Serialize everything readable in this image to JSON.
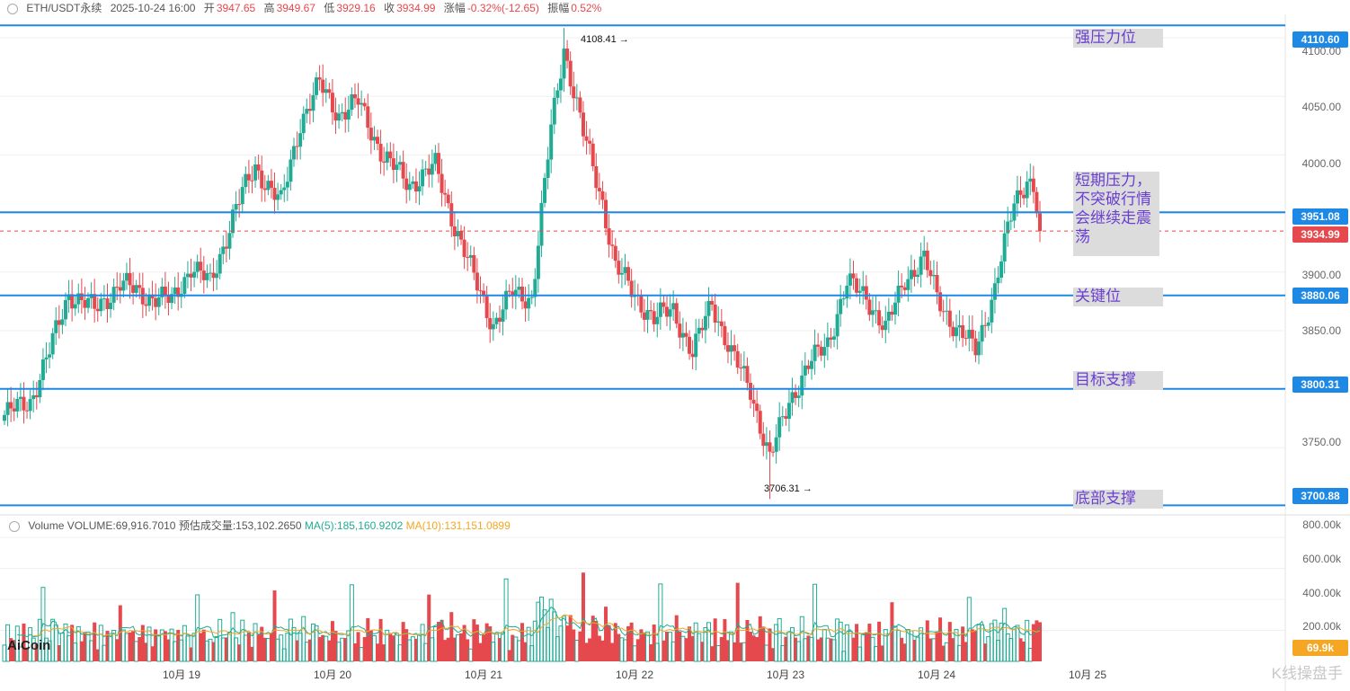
{
  "header": {
    "symbol": "ETH/USDT永续",
    "datetime": "2025-10-24 16:00",
    "open_label": "开",
    "open": "3947.65",
    "high_label": "高",
    "high": "3949.67",
    "low_label": "低",
    "low": "3929.16",
    "close_label": "收",
    "close": "3934.99",
    "change_label": "涨幅",
    "change": "-0.32%(-12.65)",
    "amp_label": "振幅",
    "amp": "0.52%"
  },
  "volume_header": {
    "title": "Volume",
    "volume": "VOLUME:69,916.7010",
    "est": "预估成交量:153,102.2650",
    "ma5": "MA(5):185,160.9202",
    "ma10": "MA(10):131,151.0899"
  },
  "annotations": {
    "strong_resistance": "强压力位",
    "short_resistance": "短期压力，不突破行情会继续走震荡",
    "key_level": "关键位",
    "target_support": "目标支撑",
    "bottom_support": "底部支撑"
  },
  "price_tags": {
    "t4110": "4110.60",
    "t3951": "3951.08",
    "t3934": "3934.99",
    "t3880": "3880.06",
    "t3800": "3800.31",
    "t3700": "3700.88"
  },
  "y_axis": [
    "4100.00",
    "4050.00",
    "4000.00",
    "3900.00",
    "3850.00",
    "3750.00"
  ],
  "vol_axis": [
    "800.00k",
    "600.00k",
    "400.00k",
    "200.00k"
  ],
  "vol_tag": "69.9k",
  "x_axis": [
    "10月 19",
    "10月 20",
    "10月 21",
    "10月 22",
    "10月 23",
    "10月 24",
    "10月 25"
  ],
  "extremes": {
    "high": "4108.41",
    "low": "3706.31"
  },
  "branding": {
    "logo": "AiCoin",
    "watermark": "K线操盘手"
  },
  "colors": {
    "up": "#22ab94",
    "down": "#e5484d",
    "level": "#1e88e5",
    "ma5": "#22ab94",
    "ma10": "#f5a623"
  },
  "chart_data": {
    "type": "candlestick",
    "interval": "1h",
    "y_range": [
      3695,
      4120
    ],
    "levels": [
      4110.6,
      3951.08,
      3880.06,
      3800.31,
      3700.88
    ],
    "last_price": 3934.99,
    "high": 4108.41,
    "low": 3706.31,
    "anchors": [
      [
        0,
        3778
      ],
      [
        8,
        3790
      ],
      [
        14,
        3832
      ],
      [
        20,
        3882
      ],
      [
        28,
        3868
      ],
      [
        36,
        3890
      ],
      [
        44,
        3880
      ],
      [
        52,
        3875
      ],
      [
        58,
        3905
      ],
      [
        64,
        3890
      ],
      [
        72,
        3955
      ],
      [
        78,
        3990
      ],
      [
        86,
        3958
      ],
      [
        92,
        4028
      ],
      [
        98,
        4060
      ],
      [
        104,
        4035
      ],
      [
        110,
        4045
      ],
      [
        118,
        3998
      ],
      [
        126,
        3975
      ],
      [
        134,
        3990
      ],
      [
        140,
        3940
      ],
      [
        146,
        3895
      ],
      [
        152,
        3855
      ],
      [
        158,
        3882
      ],
      [
        164,
        3878
      ],
      [
        170,
        4022
      ],
      [
        174,
        4092
      ],
      [
        180,
        4018
      ],
      [
        186,
        3960
      ],
      [
        190,
        3905
      ],
      [
        196,
        3880
      ],
      [
        202,
        3860
      ],
      [
        208,
        3868
      ],
      [
        214,
        3830
      ],
      [
        220,
        3875
      ],
      [
        226,
        3830
      ],
      [
        232,
        3800
      ],
      [
        238,
        3740
      ],
      [
        244,
        3790
      ],
      [
        250,
        3820
      ],
      [
        256,
        3840
      ],
      [
        262,
        3890
      ],
      [
        268,
        3880
      ],
      [
        274,
        3850
      ],
      [
        280,
        3895
      ],
      [
        286,
        3910
      ],
      [
        290,
        3880
      ],
      [
        296,
        3850
      ],
      [
        302,
        3835
      ],
      [
        308,
        3885
      ],
      [
        314,
        3960
      ],
      [
        318,
        3980
      ],
      [
        320,
        3972
      ],
      [
        322,
        3935
      ]
    ],
    "volume_range": [
      0,
      800000
    ],
    "volume_last": 69916.701,
    "ma5_last": 185160.9202,
    "ma10_last": 131151.0899
  }
}
